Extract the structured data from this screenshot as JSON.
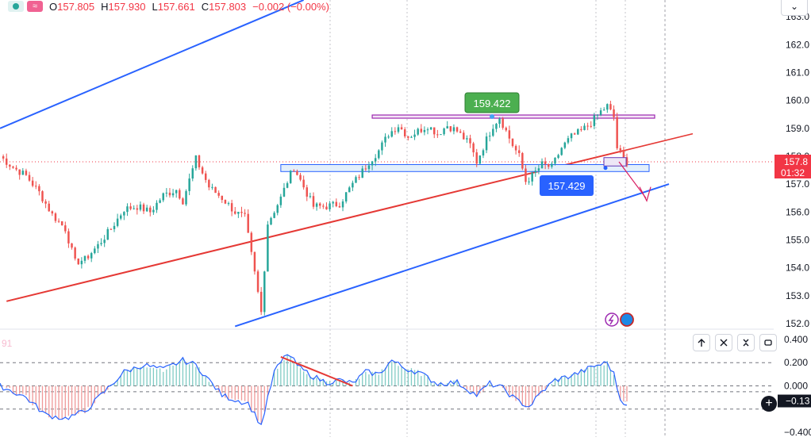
{
  "legend": {
    "open_key": "O",
    "open": "157.805",
    "high_key": "H",
    "high": "157.930",
    "low_key": "L",
    "low": "157.661",
    "close_key": "C",
    "close": "157.803",
    "change": "−0.002 (−0.00%)"
  },
  "price_axis": {
    "ticks": [
      "163.0",
      "162.0",
      "161.0",
      "160.0",
      "159.0",
      "158.0",
      "157.0",
      "156.0",
      "155.0",
      "154.0",
      "153.0",
      "152.0"
    ],
    "tick_values": [
      163,
      162,
      161,
      160,
      159,
      158,
      157,
      156,
      155,
      154,
      153,
      152
    ],
    "current_price_label": "157.8",
    "countdown_label": "01:32"
  },
  "oscillator_axis": {
    "ticks": [
      "0.400",
      "0.200",
      "0.000",
      "−0.13",
      "−0.400"
    ],
    "tick_values": [
      0.4,
      0.2,
      0.0,
      -0.13,
      -0.4
    ],
    "faint_label": "91"
  },
  "annotations": {
    "high_label": "159.422",
    "support_label": "157.429"
  },
  "colors": {
    "bull": "#26a69a",
    "bear": "#ef5350",
    "trend_blue": "#2962ff",
    "trend_red": "#e53935",
    "zone_border": "#2962ff",
    "zone_fill": "#e3effb",
    "resistance": "#9c27b0",
    "label_green": "#4caf50",
    "label_blue": "#2962ff",
    "price_red": "#f23645",
    "osc_line": "#2962ff"
  },
  "controls": {
    "up_icon": "arrow-up-icon",
    "close_icon": "close-icon",
    "collapse_icon": "collapse-icon",
    "restore_icon": "restore-icon",
    "add_icon": "plus-icon",
    "dropdown_icon": "chevron-down-icon",
    "plus_symbol": "+",
    "chevron_symbol": "⌄"
  },
  "chart_data": {
    "type": "candlestick",
    "ylim": [
      151.8,
      163.6
    ],
    "grid": false,
    "close_path": [
      [
        0,
        158.0
      ],
      [
        4,
        157.6
      ],
      [
        8,
        157.3
      ],
      [
        12,
        156.7
      ],
      [
        16,
        155.9
      ],
      [
        20,
        155.4
      ],
      [
        23,
        154.2
      ],
      [
        26,
        154.3
      ],
      [
        30,
        154.8
      ],
      [
        34,
        155.4
      ],
      [
        38,
        156.1
      ],
      [
        42,
        156.2
      ],
      [
        46,
        156.0
      ],
      [
        50,
        156.6
      ],
      [
        54,
        156.8
      ],
      [
        56,
        156.4
      ],
      [
        60,
        157.9
      ],
      [
        64,
        156.9
      ],
      [
        68,
        156.5
      ],
      [
        72,
        156.0
      ],
      [
        75,
        155.8
      ],
      [
        78,
        153.8
      ],
      [
        80,
        152.4
      ],
      [
        82,
        155.6
      ],
      [
        86,
        156.5
      ],
      [
        88,
        157.1
      ],
      [
        90,
        157.6
      ],
      [
        93,
        156.9
      ],
      [
        96,
        156.2
      ],
      [
        100,
        156.2
      ],
      [
        104,
        156.3
      ],
      [
        108,
        157.0
      ],
      [
        110,
        157.3
      ],
      [
        113,
        157.8
      ],
      [
        116,
        158.2
      ],
      [
        119,
        158.8
      ],
      [
        122,
        159.1
      ],
      [
        125,
        158.7
      ],
      [
        128,
        158.9
      ],
      [
        131,
        159.1
      ],
      [
        134,
        158.8
      ],
      [
        137,
        159.1
      ],
      [
        140,
        158.9
      ],
      [
        144,
        158.4
      ],
      [
        146,
        157.8
      ],
      [
        149,
        158.6
      ],
      [
        151,
        159.1
      ],
      [
        153,
        159.4
      ],
      [
        155,
        158.9
      ],
      [
        157,
        158.4
      ],
      [
        159,
        158.0
      ],
      [
        161,
        157.1
      ],
      [
        163,
        157.3
      ],
      [
        166,
        157.7
      ],
      [
        169,
        157.6
      ],
      [
        172,
        158.3
      ],
      [
        175,
        158.7
      ],
      [
        178,
        158.9
      ],
      [
        181,
        159.2
      ],
      [
        184,
        159.6
      ],
      [
        186,
        159.8
      ],
      [
        188,
        159.4
      ],
      [
        189,
        158.3
      ],
      [
        191,
        157.9
      ],
      [
        192,
        157.8
      ]
    ],
    "oscillator_line": [
      [
        0,
        0.0
      ],
      [
        8,
        -0.1
      ],
      [
        14,
        -0.25
      ],
      [
        20,
        -0.28
      ],
      [
        26,
        -0.22
      ],
      [
        32,
        -0.05
      ],
      [
        38,
        0.12
      ],
      [
        44,
        0.18
      ],
      [
        50,
        0.14
      ],
      [
        56,
        0.22
      ],
      [
        60,
        0.18
      ],
      [
        64,
        0.05
      ],
      [
        68,
        -0.08
      ],
      [
        72,
        -0.12
      ],
      [
        76,
        -0.15
      ],
      [
        80,
        -0.34
      ],
      [
        84,
        0.12
      ],
      [
        88,
        0.28
      ],
      [
        92,
        0.15
      ],
      [
        96,
        0.08
      ],
      [
        100,
        0.03
      ],
      [
        104,
        0.05
      ],
      [
        108,
        0.02
      ],
      [
        112,
        0.12
      ],
      [
        116,
        0.1
      ],
      [
        120,
        0.22
      ],
      [
        124,
        0.15
      ],
      [
        128,
        0.12
      ],
      [
        134,
        0.02
      ],
      [
        140,
        0.03
      ],
      [
        146,
        -0.08
      ],
      [
        150,
        0.02
      ],
      [
        154,
        -0.02
      ],
      [
        158,
        -0.12
      ],
      [
        162,
        -0.18
      ],
      [
        166,
        -0.05
      ],
      [
        170,
        0.05
      ],
      [
        174,
        0.08
      ],
      [
        178,
        0.12
      ],
      [
        182,
        0.17
      ],
      [
        186,
        0.2
      ],
      [
        188,
        0.1
      ],
      [
        190,
        -0.12
      ],
      [
        192,
        -0.15
      ]
    ],
    "oscillator_ylim": [
      -0.42,
      0.42
    ],
    "oscillator_dashed_levels": [
      0.2,
      0.0,
      -0.05,
      -0.2
    ],
    "levels": {
      "resistance": 159.42,
      "support_zone": [
        157.45,
        157.7
      ]
    },
    "trendlines": [
      {
        "color": "blue",
        "from": [
          0,
          159.0
        ],
        "to": [
          93,
          163.6
        ]
      },
      {
        "color": "blue",
        "from": [
          72,
          151.9
        ],
        "to": [
          184,
          156.2
        ]
      },
      {
        "color": "red",
        "from": [
          2,
          152.8
        ],
        "to": [
          191,
          158.2
        ]
      }
    ],
    "high_label": 159.422,
    "support_label": 157.429,
    "last_price": 157.8
  }
}
